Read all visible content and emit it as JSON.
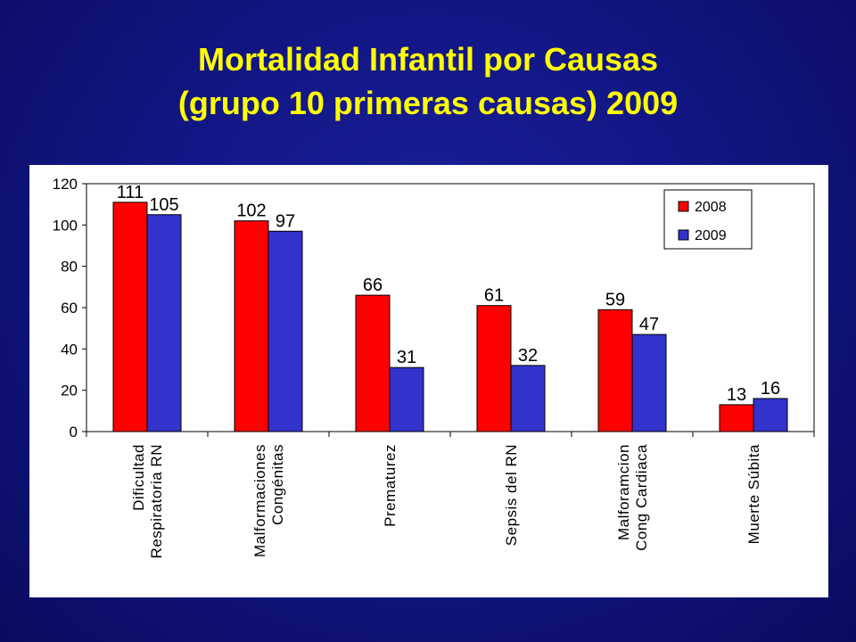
{
  "slide": {
    "title_line1": "Mortalidad Infantil por Causas",
    "title_line2": "(grupo 10 primeras causas) 2009"
  },
  "colors": {
    "background": "#121685",
    "title": "#ffff00",
    "series_2008": "#ff0000",
    "series_2009": "#3333cc"
  },
  "chart_data": {
    "type": "bar",
    "categories": [
      [
        "Dificultad",
        "Respiratoria RN"
      ],
      [
        "Malformaciones",
        "Congénitas"
      ],
      [
        "Prematurez"
      ],
      [
        "Sepsis del RN"
      ],
      [
        "Malforamcion",
        "Cong Cardiaca"
      ],
      [
        "Muerte Súbita"
      ]
    ],
    "series": [
      {
        "name": "2008",
        "values": [
          111,
          102,
          66,
          61,
          59,
          13
        ],
        "color": "#ff0000"
      },
      {
        "name": "2009",
        "values": [
          105,
          97,
          31,
          32,
          47,
          16
        ],
        "color": "#3333cc"
      }
    ],
    "ylim": [
      0,
      120
    ],
    "yticks": [
      "0",
      "20",
      "40",
      "60",
      "80",
      "100",
      "120"
    ],
    "legend_position": "top-right",
    "grid": false,
    "category_label_orientation": "vertical"
  }
}
